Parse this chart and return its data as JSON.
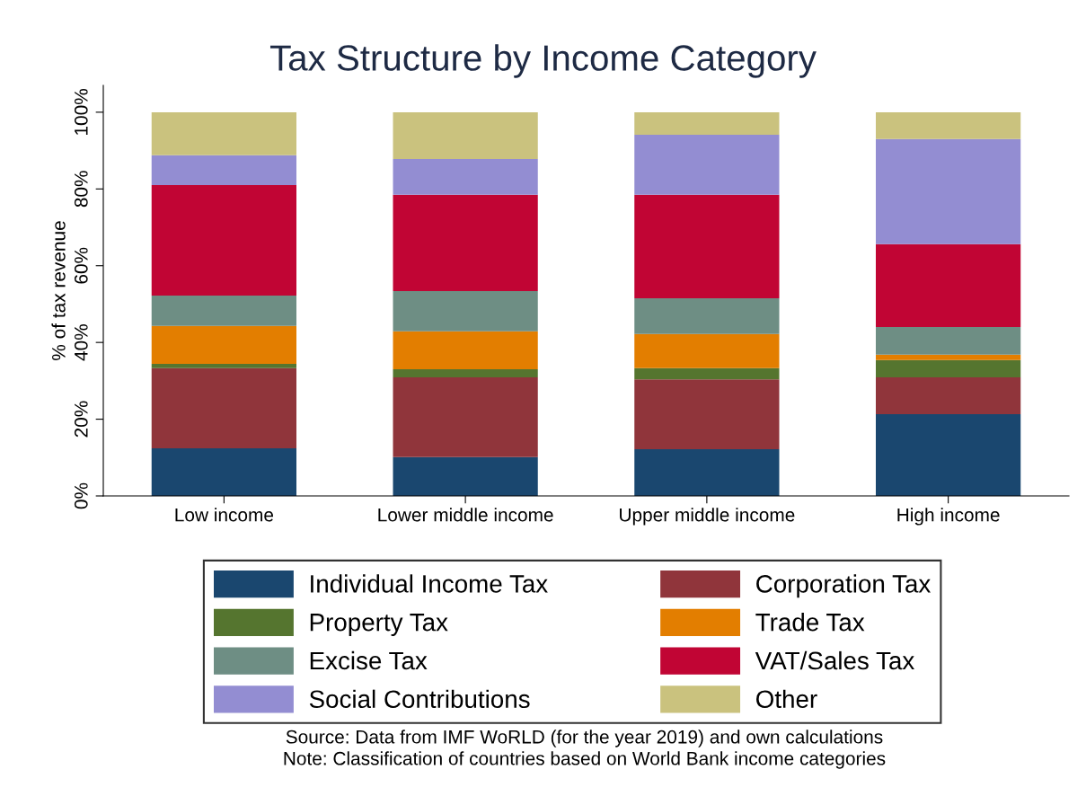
{
  "chart_data": {
    "type": "bar",
    "title": "Tax Structure by Income Category",
    "ylabel": "% of tax revenue",
    "stacked": true,
    "categories": [
      "Low income",
      "Lower middle income",
      "Upper middle income",
      "High income"
    ],
    "series": [
      {
        "name": "Individual Income Tax",
        "color": "#1a476f",
        "values": [
          12.4,
          10.1,
          12.2,
          21.3
        ]
      },
      {
        "name": "Corporation Tax",
        "color": "#90353b",
        "values": [
          20.9,
          20.8,
          18.2,
          9.6
        ]
      },
      {
        "name": "Property Tax",
        "color": "#55752f",
        "values": [
          1.1,
          2.1,
          2.9,
          4.5
        ]
      },
      {
        "name": "Trade Tax",
        "color": "#e37e00",
        "values": [
          9.9,
          9.9,
          8.9,
          1.4
        ]
      },
      {
        "name": "Excise Tax",
        "color": "#6e8e84",
        "values": [
          7.9,
          10.5,
          9.3,
          7.2
        ]
      },
      {
        "name": "VAT/Sales Tax",
        "color": "#c10534",
        "values": [
          28.8,
          25.1,
          27.0,
          21.6
        ]
      },
      {
        "name": "Social Contributions",
        "color": "#938dd2",
        "values": [
          7.8,
          9.3,
          15.6,
          27.4
        ]
      },
      {
        "name": "Other",
        "color": "#cac27e",
        "values": [
          11.2,
          12.2,
          5.9,
          7.0
        ]
      }
    ],
    "ylim": [
      0,
      107
    ],
    "yticks": [
      {
        "value": 0,
        "label": "0%"
      },
      {
        "value": 20,
        "label": "20%"
      },
      {
        "value": 40,
        "label": "40%"
      },
      {
        "value": 60,
        "label": "60%"
      },
      {
        "value": 80,
        "label": "80%"
      },
      {
        "value": 100,
        "label": "100%"
      }
    ],
    "grid": false,
    "legend": "bottom",
    "annotations": [
      "Source: Data from IMF WoRLD (for the year 2019) and own calculations",
      "Note: Classification of countries based on World Bank income categories"
    ]
  }
}
